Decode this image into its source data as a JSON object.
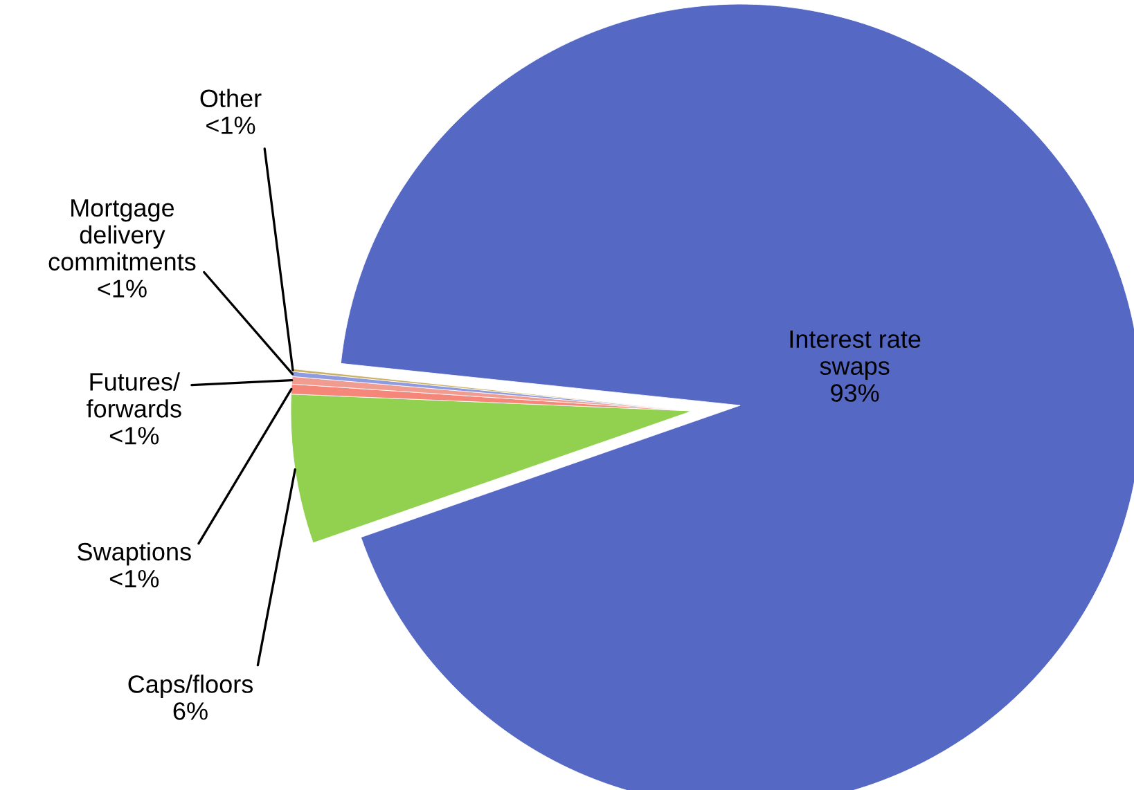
{
  "chart_data": {
    "type": "pie",
    "categories": [
      "Interest rate\nswaps",
      "Caps/floors",
      "Swaptions",
      "Futures/\nforwards",
      "Mortgage\ndelivery\ncommitments",
      "Other"
    ],
    "values": [
      93,
      6,
      0.4,
      0.3,
      0.2,
      0.1
    ],
    "value_labels": [
      "93%",
      "6%",
      "<1%",
      "<1%",
      "<1%",
      "<1%"
    ],
    "colors": [
      "#5568c3",
      "#92d050",
      "#f4877a",
      "#f09c90",
      "#8e9be0",
      "#c9b060"
    ]
  }
}
